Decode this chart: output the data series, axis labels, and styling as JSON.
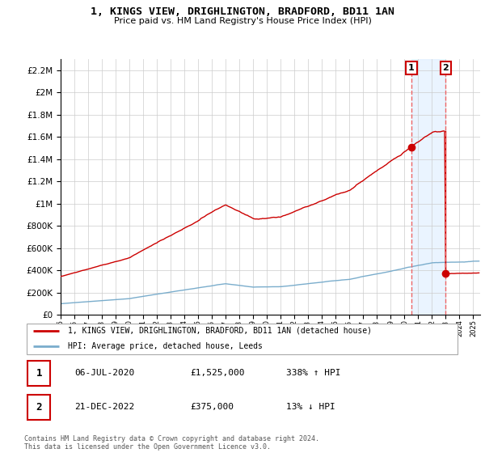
{
  "title1": "1, KINGS VIEW, DRIGHLINGTON, BRADFORD, BD11 1AN",
  "title2": "Price paid vs. HM Land Registry's House Price Index (HPI)",
  "legend_line1": "1, KINGS VIEW, DRIGHLINGTON, BRADFORD, BD11 1AN (detached house)",
  "legend_line2": "HPI: Average price, detached house, Leeds",
  "annotation1_date": "06-JUL-2020",
  "annotation1_price": "£1,525,000",
  "annotation1_hpi": "338% ↑ HPI",
  "annotation2_date": "21-DEC-2022",
  "annotation2_price": "£375,000",
  "annotation2_hpi": "13% ↓ HPI",
  "footer": "Contains HM Land Registry data © Crown copyright and database right 2024.\nThis data is licensed under the Open Government Licence v3.0.",
  "sale1_year": 2020.5,
  "sale1_value": 1525000,
  "sale2_year": 2022.97,
  "sale2_value": 375000,
  "ylim_max": 2300000,
  "xlim_min": 1995,
  "xlim_max": 2025.5,
  "line_color_red": "#cc0000",
  "line_color_blue": "#7aadcc",
  "grid_color": "#cccccc",
  "annotation_box_color": "#cc0000",
  "shading_color_blue": "#ddeeff",
  "dashed_line_color": "#ee6666"
}
